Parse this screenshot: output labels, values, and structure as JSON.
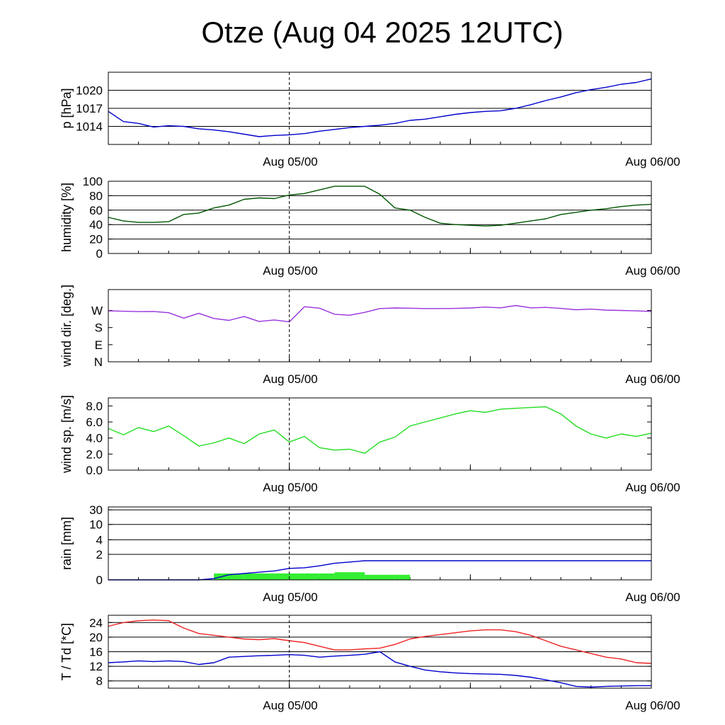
{
  "title": "Otze (Aug 04 2025 12UTC)",
  "x_labels": [
    "Aug 05/00",
    "Aug 06/00"
  ],
  "chart_data": [
    {
      "type": "line",
      "ylabel": "p [hPa]",
      "ylim": [
        1011,
        1023
      ],
      "yticks": [
        1014,
        1017,
        1020
      ],
      "tick_labels": [
        "1014",
        "1017",
        "1020"
      ],
      "grid": true,
      "series": [
        {
          "color": "#0000cc",
          "x": [
            0,
            1,
            2,
            3,
            4,
            5,
            6,
            7,
            8,
            9,
            10,
            11,
            12,
            13,
            14,
            15,
            16,
            17,
            18,
            19,
            20,
            21,
            22,
            23,
            24,
            25,
            26,
            27,
            28,
            29,
            30,
            31,
            32,
            33,
            34,
            35,
            36
          ],
          "values": [
            1016.5,
            1014.8,
            1014.5,
            1013.9,
            1014.1,
            1014.0,
            1013.6,
            1013.4,
            1013.1,
            1012.7,
            1012.3,
            1012.5,
            1012.6,
            1012.8,
            1013.2,
            1013.5,
            1013.8,
            1014.0,
            1014.2,
            1014.5,
            1015.0,
            1015.2,
            1015.6,
            1016.0,
            1016.3,
            1016.5,
            1016.6,
            1017.0,
            1017.6,
            1018.3,
            1018.9,
            1019.6,
            1020.1,
            1020.5,
            1021.0,
            1021.3,
            1021.9
          ]
        }
      ]
    },
    {
      "type": "line",
      "ylabel": "humidity [%]",
      "ylim": [
        0,
        100
      ],
      "yticks": [
        0,
        20,
        40,
        60,
        80,
        100
      ],
      "tick_labels": [
        "0",
        "20",
        "40",
        "60",
        "80",
        "100"
      ],
      "grid": true,
      "series": [
        {
          "color": "#005500",
          "x": [
            0,
            1,
            2,
            3,
            4,
            5,
            6,
            7,
            8,
            9,
            10,
            11,
            12,
            13,
            14,
            15,
            16,
            17,
            18,
            19,
            20,
            21,
            22,
            23,
            24,
            25,
            26,
            27,
            28,
            29,
            30,
            31,
            32,
            33,
            34,
            35,
            36
          ],
          "values": [
            50,
            45,
            43,
            43,
            44,
            54,
            56,
            63,
            67,
            75,
            77,
            76,
            81,
            83,
            88,
            93,
            93,
            93,
            82,
            63,
            60,
            50,
            42,
            40,
            39,
            38,
            39,
            42,
            45,
            48,
            54,
            57,
            60,
            62,
            65,
            67,
            68
          ]
        }
      ]
    },
    {
      "type": "line",
      "ylabel": "wind dir. [deg.]",
      "ylim": [
        0,
        380
      ],
      "yticks": [
        0,
        90,
        180,
        270
      ],
      "tick_labels": [
        "N",
        "E",
        "S",
        "W"
      ],
      "grid": false,
      "series": [
        {
          "color": "#9933dd",
          "x": [
            0,
            1,
            2,
            3,
            4,
            5,
            6,
            7,
            8,
            9,
            10,
            11,
            12,
            13,
            14,
            15,
            16,
            17,
            18,
            19,
            20,
            21,
            22,
            23,
            24,
            25,
            26,
            27,
            28,
            29,
            30,
            31,
            32,
            33,
            34,
            35,
            36
          ],
          "values": [
            268,
            266,
            264,
            265,
            258,
            230,
            255,
            228,
            218,
            238,
            212,
            220,
            210,
            290,
            282,
            250,
            245,
            260,
            280,
            283,
            282,
            280,
            280,
            281,
            283,
            288,
            284,
            296,
            284,
            286,
            281,
            274,
            277,
            272,
            270,
            268,
            265
          ]
        }
      ]
    },
    {
      "type": "line",
      "ylabel": "wind sp. [m/s]",
      "ylim": [
        0,
        9
      ],
      "yticks": [
        0,
        2,
        4,
        6,
        8
      ],
      "tick_labels": [
        "0.0",
        "2.0",
        "4.0",
        "6.0",
        "8.0"
      ],
      "grid": false,
      "series": [
        {
          "color": "#22dd22",
          "x": [
            0,
            1,
            2,
            3,
            4,
            5,
            6,
            7,
            8,
            9,
            10,
            11,
            12,
            13,
            14,
            15,
            16,
            17,
            18,
            19,
            20,
            21,
            22,
            23,
            24,
            25,
            26,
            27,
            28,
            29,
            30,
            31,
            32,
            33,
            34,
            35,
            36
          ],
          "values": [
            5.2,
            4.4,
            5.3,
            4.8,
            5.5,
            4.3,
            3.0,
            3.4,
            4.0,
            3.3,
            4.5,
            5.0,
            3.5,
            4.2,
            2.8,
            2.5,
            2.6,
            2.1,
            3.5,
            4.1,
            5.5,
            6.0,
            6.5,
            7.0,
            7.4,
            7.2,
            7.6,
            7.7,
            7.8,
            7.9,
            7.0,
            5.5,
            4.5,
            4.0,
            4.5,
            4.2,
            4.6
          ]
        }
      ]
    },
    {
      "type": "bar",
      "ylabel": "rain [mm]",
      "yticks": [
        0,
        2,
        4,
        10,
        30
      ],
      "tick_labels": [
        "0",
        "2",
        "4",
        "10",
        "30"
      ],
      "grid": true,
      "bars": {
        "color": "#33ee33",
        "x": [
          7.5,
          8.5,
          9.5,
          10.5,
          11.5,
          12.5,
          13.5,
          14.5,
          15.5,
          16.5,
          17.5,
          18.5,
          19.5
        ],
        "values": [
          0.5,
          0.5,
          0.5,
          0.5,
          0.5,
          0.5,
          0.5,
          0.5,
          0.6,
          0.6,
          0.4,
          0.4,
          0.4
        ]
      },
      "series": [
        {
          "color": "#0000cc",
          "x": [
            0,
            6,
            7,
            8,
            9,
            10,
            11,
            12,
            13,
            14,
            15,
            16,
            17,
            18,
            36
          ],
          "values": [
            0,
            0,
            0.1,
            0.4,
            0.5,
            0.6,
            0.7,
            0.9,
            0.95,
            1.1,
            1.3,
            1.4,
            1.5,
            1.5,
            1.5
          ]
        }
      ]
    },
    {
      "type": "line",
      "ylabel": "T / Td [*C]",
      "ylim": [
        6,
        26
      ],
      "yticks": [
        8,
        12,
        16,
        20,
        24
      ],
      "tick_labels": [
        "8",
        "12",
        "16",
        "20",
        "24"
      ],
      "grid": true,
      "series": [
        {
          "color": "#ee2222",
          "x": [
            0,
            1,
            2,
            3,
            4,
            5,
            6,
            7,
            8,
            9,
            10,
            11,
            12,
            13,
            14,
            15,
            16,
            17,
            18,
            19,
            20,
            21,
            22,
            23,
            24,
            25,
            26,
            27,
            28,
            29,
            30,
            31,
            32,
            33,
            34,
            35,
            36
          ],
          "values": [
            23.0,
            24.0,
            24.5,
            24.7,
            24.5,
            22.5,
            21.0,
            20.5,
            20.0,
            19.5,
            19.3,
            19.6,
            19.0,
            18.5,
            17.5,
            16.5,
            16.5,
            16.8,
            17.0,
            18.0,
            19.5,
            20.2,
            20.7,
            21.2,
            21.7,
            22.0,
            22.0,
            21.5,
            20.5,
            19.0,
            17.5,
            16.5,
            15.5,
            14.5,
            14.0,
            13.0,
            12.8
          ]
        },
        {
          "color": "#0000cc",
          "x": [
            0,
            1,
            2,
            3,
            4,
            5,
            6,
            7,
            8,
            9,
            10,
            11,
            12,
            13,
            14,
            15,
            16,
            17,
            18,
            19,
            20,
            21,
            22,
            23,
            24,
            25,
            26,
            27,
            28,
            29,
            30,
            31,
            32,
            33,
            34,
            35,
            36
          ],
          "values": [
            13.0,
            13.2,
            13.5,
            13.3,
            13.5,
            13.3,
            12.5,
            13.0,
            14.5,
            14.7,
            14.9,
            15.0,
            15.2,
            15.0,
            14.5,
            14.8,
            15.0,
            15.3,
            16.0,
            13.2,
            12.0,
            11.0,
            10.5,
            10.2,
            10.0,
            9.9,
            9.8,
            9.5,
            9.0,
            8.3,
            7.5,
            6.5,
            6.3,
            6.5,
            6.6,
            6.7,
            6.7
          ]
        }
      ]
    }
  ]
}
